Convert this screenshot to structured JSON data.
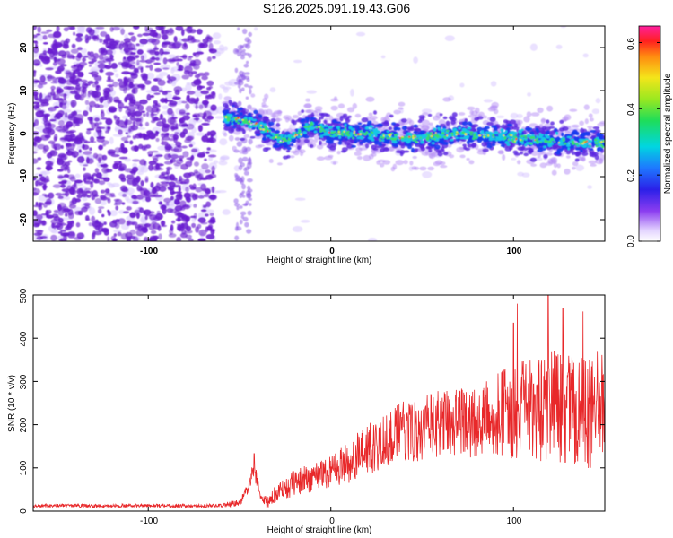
{
  "title": "S126.2025.091.19.43.G06",
  "colors": {
    "snr_line": "#e8282a",
    "noise": "#6a1fd0"
  },
  "chart_data": [
    {
      "type": "heatmap",
      "xlabel": "Height of straight line (km)",
      "ylabel": "Frequency (Hz)",
      "xlim": [
        -163,
        150
      ],
      "ylim": [
        -25,
        25
      ],
      "xticks": [
        -100,
        0,
        100
      ],
      "xtick_labels": [
        "-100",
        "0",
        "100"
      ],
      "yticks": [
        -20,
        -10,
        0,
        10,
        20
      ],
      "ytick_labels": [
        "-20",
        "-10",
        "0",
        "10",
        "20"
      ],
      "colorbar": {
        "label": "Normalized spectral amplitude",
        "range": [
          0.0,
          0.65
        ],
        "ticks": [
          0.0,
          0.2,
          0.4,
          0.6
        ],
        "tick_labels": [
          "0.0",
          "0.2",
          "0.4",
          "0.6"
        ],
        "colormap": "rainbow (purple-blue-cyan-green-yellow-red-magenta)"
      },
      "signal_band": {
        "description": "concentrated energy band near 0 Hz starting around -55 km; noise covers full frequency range below -60 km",
        "center_frequency_hz": [
          {
            "x": -55,
            "f": 4
          },
          {
            "x": -40,
            "f": 2
          },
          {
            "x": -25,
            "f": -2
          },
          {
            "x": -10,
            "f": 2
          },
          {
            "x": 0,
            "f": 0
          },
          {
            "x": 20,
            "f": 0
          },
          {
            "x": 40,
            "f": -1
          },
          {
            "x": 70,
            "f": 0
          },
          {
            "x": 100,
            "f": -1
          },
          {
            "x": 130,
            "f": -2
          },
          {
            "x": 150,
            "f": -2
          }
        ]
      }
    },
    {
      "type": "line",
      "xlabel": "Height of straight line (km)",
      "ylabel": "SNR (10 * v/v)",
      "xlim": [
        -163,
        150
      ],
      "ylim": [
        0,
        500
      ],
      "xticks": [
        -100,
        0,
        100
      ],
      "xtick_labels": [
        "-100",
        "0",
        "100"
      ],
      "yticks": [
        0,
        100,
        200,
        300,
        400,
        500
      ],
      "ytick_labels": [
        "0",
        "100",
        "200",
        "300",
        "400",
        "500"
      ],
      "series": [
        {
          "x": [
            -163,
            -150,
            -125,
            -100,
            -75,
            -60,
            -50,
            -45,
            -42,
            -40,
            -38,
            -35,
            -30,
            -20,
            -10,
            0,
            10,
            20,
            30,
            40,
            50,
            60,
            70,
            80,
            90,
            100,
            110,
            120,
            130,
            140,
            150
          ],
          "y": [
            12,
            13,
            12,
            13,
            12,
            13,
            20,
            55,
            100,
            60,
            30,
            20,
            40,
            65,
            80,
            95,
            115,
            140,
            165,
            185,
            190,
            200,
            210,
            200,
            220,
            230,
            235,
            240,
            240,
            220,
            260
          ],
          "noise_amplitude": [
            4,
            4,
            4,
            4,
            4,
            5,
            8,
            15,
            25,
            15,
            10,
            15,
            20,
            30,
            35,
            40,
            50,
            60,
            65,
            70,
            75,
            80,
            80,
            85,
            95,
            110,
            120,
            130,
            130,
            130,
            130
          ],
          "peaks": [
            {
              "x": -42,
              "y": 133
            },
            {
              "x": 100,
              "y": 435
            },
            {
              "x": 102,
              "y": 480
            },
            {
              "x": 119,
              "y": 500
            },
            {
              "x": 127,
              "y": 468
            },
            {
              "x": 138,
              "y": 462
            }
          ]
        }
      ]
    }
  ]
}
